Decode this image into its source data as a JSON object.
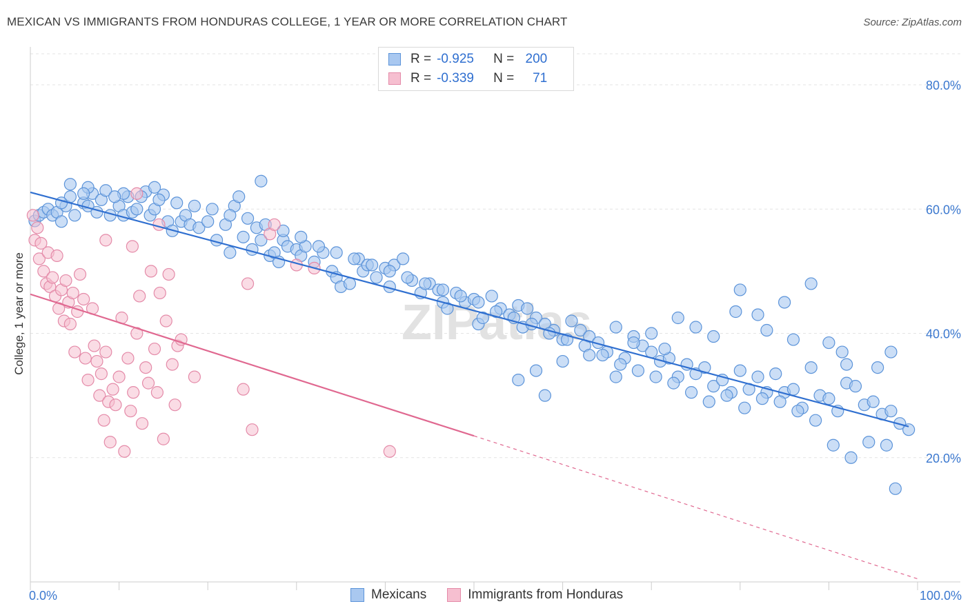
{
  "title": "MEXICAN VS IMMIGRANTS FROM HONDURAS COLLEGE, 1 YEAR OR MORE CORRELATION CHART",
  "source": "Source: ZipAtlas.com",
  "watermark": "ZIPatlas",
  "legend": {
    "row1": {
      "r_label": "R =",
      "r_value": "-0.925",
      "n_label": "N =",
      "n_value": "200"
    },
    "row2": {
      "r_label": "R =",
      "r_value": "-0.339",
      "n_label": "N =",
      "n_value": "71"
    }
  },
  "colors": {
    "blue_fill": "#a9c8f0",
    "blue_stroke": "#5b93d9",
    "blue_line": "#2f6fd0",
    "pink_fill": "#f6bfd0",
    "pink_stroke": "#e48aa8",
    "pink_line": "#e06890",
    "tick_text": "#3b78cf",
    "grid": "#e3e3e3"
  },
  "chart_data": {
    "type": "scatter",
    "xlabel": "",
    "ylabel": "College, 1 year or more",
    "xlim": [
      0,
      100
    ],
    "ylim": [
      0,
      85
    ],
    "x_tick_labels": {
      "min": "0.0%",
      "max": "100.0%"
    },
    "y_ticks": [
      {
        "value": 20,
        "label": "20.0%"
      },
      {
        "value": 40,
        "label": "40.0%"
      },
      {
        "value": 60,
        "label": "60.0%"
      },
      {
        "value": 80,
        "label": "80.0%"
      }
    ],
    "grid": "horizontal dashed",
    "legend_position": "top-center",
    "series": [
      {
        "name": "Mexicans",
        "trend": {
          "x": [
            0,
            99
          ],
          "y": [
            62.7,
            25.0
          ]
        },
        "points": [
          [
            0.5,
            58.1
          ],
          [
            1,
            59.0
          ],
          [
            1.5,
            59.5
          ],
          [
            2,
            60.0
          ],
          [
            2.5,
            59.0
          ],
          [
            3,
            59.5
          ],
          [
            3.5,
            58.0
          ],
          [
            4,
            60.5
          ],
          [
            4.5,
            62.0
          ],
          [
            5,
            59.0
          ],
          [
            6,
            61.0
          ],
          [
            6.5,
            60.5
          ],
          [
            7,
            62.5
          ],
          [
            7.5,
            59.5
          ],
          [
            8,
            61.5
          ],
          [
            9,
            59.0
          ],
          [
            10,
            60.5
          ],
          [
            10.5,
            59.0
          ],
          [
            11,
            62.0
          ],
          [
            11.5,
            59.5
          ],
          [
            12,
            60.0
          ],
          [
            13,
            62.8
          ],
          [
            13.5,
            59.0
          ],
          [
            14,
            60.0
          ],
          [
            15,
            62.3
          ],
          [
            15.5,
            58.0
          ],
          [
            16,
            56.5
          ],
          [
            17,
            58.0
          ],
          [
            17.5,
            59.0
          ],
          [
            18,
            57.5
          ],
          [
            19,
            57.0
          ],
          [
            20,
            58.0
          ],
          [
            21,
            55.0
          ],
          [
            22,
            57.5
          ],
          [
            22.5,
            53.0
          ],
          [
            23,
            60.5
          ],
          [
            24,
            55.5
          ],
          [
            25,
            53.5
          ],
          [
            25.5,
            57.0
          ],
          [
            26,
            55.0
          ],
          [
            27,
            52.5
          ],
          [
            27.5,
            53.0
          ],
          [
            28,
            51.5
          ],
          [
            28.5,
            55.0
          ],
          [
            29,
            54.0
          ],
          [
            30,
            53.5
          ],
          [
            30.5,
            52.5
          ],
          [
            31,
            54.0
          ],
          [
            32,
            51.5
          ],
          [
            33,
            53.0
          ],
          [
            34,
            50.0
          ],
          [
            34.5,
            49.0
          ],
          [
            35,
            47.5
          ],
          [
            36,
            48.0
          ],
          [
            37,
            52.0
          ],
          [
            37.5,
            50.0
          ],
          [
            38,
            51.0
          ],
          [
            39,
            49.0
          ],
          [
            40,
            50.5
          ],
          [
            40.5,
            47.5
          ],
          [
            41,
            51.0
          ],
          [
            42,
            52.0
          ],
          [
            43,
            48.5
          ],
          [
            44,
            46.5
          ],
          [
            45,
            48.0
          ],
          [
            46,
            47.0
          ],
          [
            46.5,
            45.0
          ],
          [
            47,
            44.0
          ],
          [
            48,
            46.5
          ],
          [
            49,
            45.0
          ],
          [
            50,
            45.5
          ],
          [
            50.5,
            41.5
          ],
          [
            51,
            42.5
          ],
          [
            52,
            46.0
          ],
          [
            53,
            44.0
          ],
          [
            54,
            43.0
          ],
          [
            55,
            44.5
          ],
          [
            55.5,
            41.0
          ],
          [
            56,
            44.0
          ],
          [
            57,
            42.5
          ],
          [
            58,
            41.5
          ],
          [
            59,
            40.5
          ],
          [
            60,
            39.0
          ],
          [
            61,
            42.0
          ],
          [
            62,
            40.5
          ],
          [
            63,
            39.5
          ],
          [
            64,
            38.5
          ],
          [
            65,
            37.0
          ],
          [
            66,
            41.0
          ],
          [
            67,
            36.0
          ],
          [
            68,
            39.5
          ],
          [
            69,
            38.0
          ],
          [
            70,
            37.0
          ],
          [
            71,
            35.5
          ],
          [
            72,
            36.0
          ],
          [
            73,
            33.0
          ],
          [
            74,
            35.0
          ],
          [
            75,
            33.5
          ],
          [
            76,
            34.5
          ],
          [
            77,
            31.5
          ],
          [
            78,
            32.5
          ],
          [
            79,
            30.5
          ],
          [
            80,
            34.0
          ],
          [
            81,
            31.0
          ],
          [
            82,
            33.0
          ],
          [
            83,
            30.5
          ],
          [
            84,
            33.5
          ],
          [
            85,
            30.5
          ],
          [
            86,
            31.0
          ],
          [
            87,
            28.0
          ],
          [
            88,
            34.5
          ],
          [
            89,
            30.0
          ],
          [
            90,
            29.5
          ],
          [
            91,
            27.5
          ],
          [
            92,
            32.0
          ],
          [
            93,
            31.5
          ],
          [
            94,
            28.5
          ],
          [
            95,
            29.0
          ],
          [
            96,
            27.0
          ],
          [
            97,
            27.5
          ],
          [
            98,
            25.5
          ],
          [
            99,
            24.5
          ],
          [
            96.5,
            22.0
          ],
          [
            94.5,
            22.5
          ],
          [
            92.5,
            20.0
          ],
          [
            90.5,
            22.0
          ],
          [
            88.5,
            26.0
          ],
          [
            97.5,
            15.0
          ],
          [
            86.5,
            27.5
          ],
          [
            84.5,
            29.0
          ],
          [
            82.5,
            29.5
          ],
          [
            80.5,
            28.0
          ],
          [
            78.5,
            30.0
          ],
          [
            76.5,
            29.0
          ],
          [
            74.5,
            30.5
          ],
          [
            72.5,
            32.0
          ],
          [
            70.5,
            33.0
          ],
          [
            68.5,
            34.0
          ],
          [
            66.5,
            35.0
          ],
          [
            64.5,
            36.5
          ],
          [
            62.5,
            38.0
          ],
          [
            60.5,
            39.0
          ],
          [
            58.5,
            40.0
          ],
          [
            56.5,
            41.5
          ],
          [
            54.5,
            42.5
          ],
          [
            52.5,
            43.5
          ],
          [
            50.5,
            45.0
          ],
          [
            48.5,
            46.0
          ],
          [
            46.5,
            47.0
          ],
          [
            44.5,
            48.0
          ],
          [
            42.5,
            49.0
          ],
          [
            40.5,
            50.0
          ],
          [
            38.5,
            51.0
          ],
          [
            36.5,
            52.0
          ],
          [
            34.5,
            53.0
          ],
          [
            32.5,
            54.0
          ],
          [
            30.5,
            55.5
          ],
          [
            28.5,
            56.5
          ],
          [
            26.5,
            57.5
          ],
          [
            24.5,
            58.5
          ],
          [
            22.5,
            59.0
          ],
          [
            20.5,
            60.0
          ],
          [
            18.5,
            60.5
          ],
          [
            16.5,
            61.0
          ],
          [
            14.5,
            61.5
          ],
          [
            12.5,
            62.0
          ],
          [
            10.5,
            62.5
          ],
          [
            8.5,
            63.0
          ],
          [
            6.5,
            63.5
          ],
          [
            4.5,
            64.0
          ],
          [
            26,
            64.5
          ],
          [
            23.5,
            62.0
          ],
          [
            14,
            63.5
          ],
          [
            9.5,
            62.0
          ],
          [
            6,
            62.5
          ],
          [
            3.5,
            61.0
          ],
          [
            80,
            47.0
          ],
          [
            85,
            45.0
          ],
          [
            88,
            48.0
          ],
          [
            82,
            43.0
          ],
          [
            75,
            41.0
          ],
          [
            77,
            39.5
          ],
          [
            86,
            39.0
          ],
          [
            90,
            38.5
          ],
          [
            91.5,
            37.0
          ],
          [
            83,
            40.5
          ],
          [
            95.5,
            34.5
          ],
          [
            92,
            35.0
          ],
          [
            97,
            37.0
          ],
          [
            79.5,
            43.5
          ],
          [
            73,
            42.5
          ],
          [
            70,
            40.0
          ],
          [
            68,
            38.5
          ],
          [
            71.5,
            37.5
          ],
          [
            66,
            33.0
          ],
          [
            63,
            36.5
          ],
          [
            60,
            35.5
          ],
          [
            57,
            34.0
          ],
          [
            55,
            32.5
          ],
          [
            58,
            30.0
          ]
        ]
      },
      {
        "name": "Immigrants from Honduras",
        "trend": {
          "x": [
            0,
            50
          ],
          "y": [
            46.3,
            23.5
          ]
        },
        "trend_extension": {
          "x": [
            50,
            100
          ],
          "y": [
            23.5,
            0.5
          ]
        },
        "points": [
          [
            0.3,
            59.0
          ],
          [
            0.5,
            55.0
          ],
          [
            0.8,
            57.0
          ],
          [
            1,
            52.0
          ],
          [
            1.2,
            54.5
          ],
          [
            1.5,
            50.0
          ],
          [
            1.8,
            48.0
          ],
          [
            2,
            53.0
          ],
          [
            2.2,
            47.5
          ],
          [
            2.5,
            49.0
          ],
          [
            2.8,
            46.0
          ],
          [
            3,
            52.5
          ],
          [
            3.2,
            44.0
          ],
          [
            3.5,
            47.0
          ],
          [
            3.8,
            42.0
          ],
          [
            4,
            48.5
          ],
          [
            4.3,
            45.0
          ],
          [
            4.5,
            41.5
          ],
          [
            4.8,
            46.5
          ],
          [
            5,
            37.0
          ],
          [
            5.3,
            43.5
          ],
          [
            5.6,
            49.5
          ],
          [
            6,
            45.5
          ],
          [
            6.2,
            36.0
          ],
          [
            6.5,
            32.5
          ],
          [
            7,
            44.0
          ],
          [
            7.2,
            38.0
          ],
          [
            7.5,
            35.5
          ],
          [
            7.8,
            30.0
          ],
          [
            8,
            33.5
          ],
          [
            8.3,
            26.0
          ],
          [
            8.5,
            37.0
          ],
          [
            8.8,
            29.0
          ],
          [
            9,
            22.5
          ],
          [
            9.3,
            31.0
          ],
          [
            9.6,
            28.5
          ],
          [
            10,
            33.0
          ],
          [
            10.3,
            42.5
          ],
          [
            10.6,
            21.0
          ],
          [
            11,
            36.0
          ],
          [
            11.3,
            27.5
          ],
          [
            11.6,
            30.5
          ],
          [
            12,
            40.0
          ],
          [
            12.3,
            46.0
          ],
          [
            12.6,
            25.5
          ],
          [
            13,
            34.5
          ],
          [
            13.3,
            32.0
          ],
          [
            13.6,
            50.0
          ],
          [
            14,
            37.5
          ],
          [
            14.3,
            30.5
          ],
          [
            14.6,
            46.5
          ],
          [
            15,
            23.0
          ],
          [
            15.3,
            42.0
          ],
          [
            15.6,
            49.5
          ],
          [
            16,
            35.0
          ],
          [
            16.3,
            28.5
          ],
          [
            16.6,
            38.0
          ],
          [
            11.5,
            54.0
          ],
          [
            8.5,
            55.0
          ],
          [
            12,
            62.5
          ],
          [
            14.5,
            57.5
          ],
          [
            24,
            31.0
          ],
          [
            24.5,
            48.0
          ],
          [
            25,
            24.5
          ],
          [
            27,
            56.0
          ],
          [
            27.5,
            57.5
          ],
          [
            30,
            51.0
          ],
          [
            32,
            50.5
          ],
          [
            40.5,
            21.0
          ],
          [
            17,
            39.0
          ],
          [
            18.5,
            33.0
          ]
        ]
      }
    ]
  }
}
